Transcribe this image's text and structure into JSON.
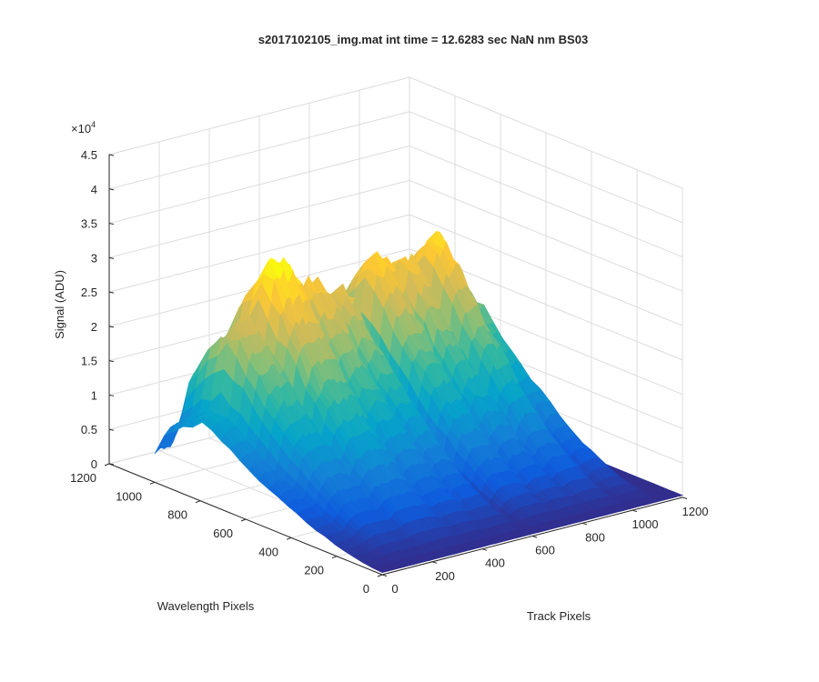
{
  "chart_data": {
    "type": "surface",
    "title": "s2017102105_img.mat int time = 12.6283 sec  NaN nm BS03",
    "xlabel": "Track Pixels",
    "ylabel": "Wavelength Pixels",
    "zlabel": "Signal (ADU)",
    "z_exponent_label": "×10",
    "z_exponent_power": "4",
    "xlim": [
      0,
      1200
    ],
    "ylim": [
      0,
      1200
    ],
    "zlim": [
      0,
      45000
    ],
    "x_ticks": [
      "0",
      "200",
      "400",
      "600",
      "800",
      "1000",
      "1200"
    ],
    "y_ticks": [
      "0",
      "200",
      "400",
      "600",
      "800",
      "1000",
      "1200"
    ],
    "z_ticks": [
      "0",
      "0.5",
      "1",
      "1.5",
      "2",
      "2.5",
      "3",
      "3.5",
      "4",
      "4.5"
    ],
    "grid": true,
    "colormap": "parula",
    "colormap_stops": [
      "#352a87",
      "#0f5cdd",
      "#1481d6",
      "#06a4ca",
      "#2eb7a4",
      "#87bf77",
      "#d1bb59",
      "#fec832",
      "#f9fb0e"
    ],
    "surface_extent": {
      "track_pixels": [
        0,
        1200
      ],
      "wavelength_pixels": [
        0,
        1000
      ]
    },
    "track_peaks": [
      {
        "center": 50,
        "peak": 12500,
        "halfwidth": 55
      },
      {
        "center": 160,
        "peak": 24500,
        "halfwidth": 65
      },
      {
        "center": 300,
        "peak": 32000,
        "halfwidth": 75
      },
      {
        "center": 440,
        "peak": 28000,
        "halfwidth": 55
      },
      {
        "center": 545,
        "peak": 26000,
        "halfwidth": 45
      },
      {
        "center": 700,
        "peak": 29000,
        "halfwidth": 55
      },
      {
        "center": 815,
        "peak": 28000,
        "halfwidth": 45
      },
      {
        "center": 930,
        "peak": 30000,
        "halfwidth": 50
      },
      {
        "center": 1060,
        "peak": 20000,
        "halfwidth": 40
      }
    ],
    "wavelength_profile": {
      "peak_at": 780,
      "start": 0,
      "end": 1000
    }
  }
}
